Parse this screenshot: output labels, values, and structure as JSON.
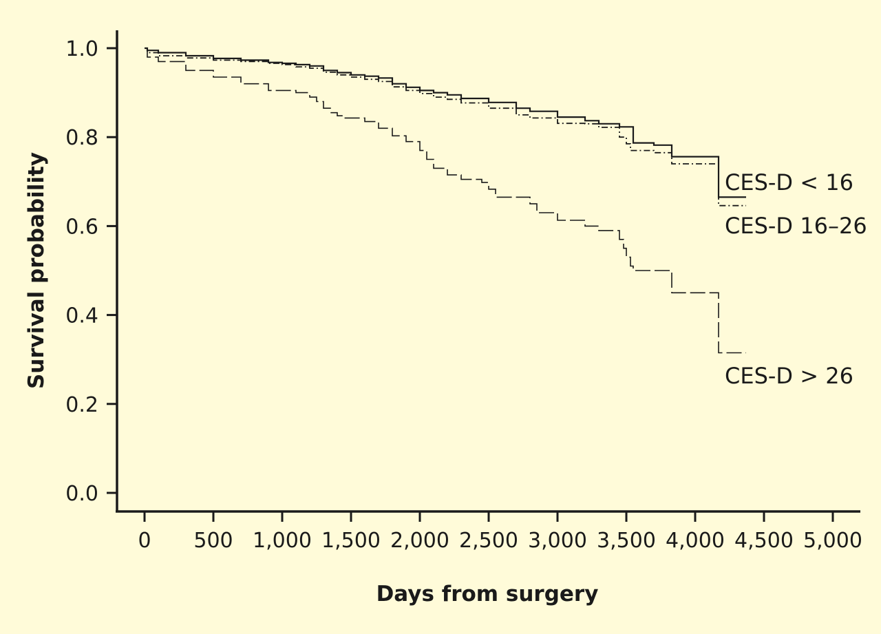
{
  "chart_data": {
    "type": "line",
    "style": "step",
    "xlabel": "Days from surgery",
    "ylabel": "Survival probability",
    "xlim": [
      0,
      5000
    ],
    "ylim": [
      0,
      1
    ],
    "grid": false,
    "background_color": "#fffbd9",
    "line_color": "#1a1a1a",
    "x_ticks": [
      0,
      500,
      1000,
      1500,
      2000,
      2500,
      3000,
      3500,
      4000,
      4500,
      5000
    ],
    "x_tick_labels": [
      "0",
      "500",
      "1,000",
      "1,500",
      "2,000",
      "2,500",
      "3,000",
      "3,500",
      "4,000",
      "4,500",
      "5,000"
    ],
    "y_ticks": [
      0,
      0.2,
      0.4,
      0.6,
      0.8,
      1.0
    ],
    "y_tick_labels": [
      "0.0",
      "0.2",
      "0.4",
      "0.6",
      "0.8",
      "1.0"
    ],
    "series": [
      {
        "name": "CES-D < 16",
        "line_style": "solid",
        "x": [
          0,
          20,
          100,
          300,
          500,
          700,
          900,
          1000,
          1100,
          1200,
          1300,
          1400,
          1500,
          1600,
          1700,
          1800,
          1900,
          2000,
          2100,
          2200,
          2300,
          2500,
          2700,
          2800,
          3000,
          3200,
          3300,
          3450,
          3550,
          3700,
          3830,
          4000,
          4170,
          4370
        ],
        "y": [
          1.0,
          0.995,
          0.99,
          0.983,
          0.977,
          0.973,
          0.968,
          0.966,
          0.963,
          0.96,
          0.95,
          0.945,
          0.94,
          0.937,
          0.933,
          0.92,
          0.912,
          0.905,
          0.9,
          0.895,
          0.887,
          0.878,
          0.865,
          0.858,
          0.845,
          0.837,
          0.83,
          0.823,
          0.787,
          0.782,
          0.756,
          0.756,
          0.665,
          0.665
        ]
      },
      {
        "name": "CES-D 16–26",
        "line_style": "dash-dot",
        "x": [
          0,
          20,
          100,
          300,
          500,
          700,
          900,
          1000,
          1100,
          1200,
          1300,
          1400,
          1500,
          1600,
          1700,
          1800,
          1900,
          2000,
          2100,
          2200,
          2300,
          2500,
          2700,
          2800,
          3000,
          3200,
          3300,
          3450,
          3500,
          3530,
          3700,
          3830,
          4000,
          4170,
          4370
        ],
        "y": [
          1.0,
          0.99,
          0.983,
          0.978,
          0.973,
          0.97,
          0.966,
          0.963,
          0.958,
          0.955,
          0.946,
          0.94,
          0.935,
          0.93,
          0.925,
          0.913,
          0.905,
          0.898,
          0.89,
          0.885,
          0.877,
          0.865,
          0.85,
          0.843,
          0.831,
          0.83,
          0.822,
          0.8,
          0.785,
          0.77,
          0.765,
          0.74,
          0.74,
          0.646,
          0.646
        ]
      },
      {
        "name": "CES-D > 26",
        "line_style": "long-dash",
        "x": [
          0,
          20,
          100,
          300,
          500,
          700,
          900,
          1100,
          1200,
          1250,
          1300,
          1350,
          1400,
          1450,
          1500,
          1600,
          1700,
          1800,
          1900,
          2000,
          2050,
          2100,
          2200,
          2300,
          2450,
          2500,
          2550,
          2800,
          2850,
          3000,
          3100,
          3200,
          3300,
          3450,
          3480,
          3500,
          3530,
          3550,
          3620,
          3830,
          4000,
          4170,
          4370
        ],
        "y": [
          1.0,
          0.98,
          0.97,
          0.95,
          0.935,
          0.92,
          0.905,
          0.9,
          0.89,
          0.88,
          0.865,
          0.855,
          0.848,
          0.843,
          0.843,
          0.835,
          0.82,
          0.803,
          0.79,
          0.77,
          0.75,
          0.73,
          0.715,
          0.705,
          0.698,
          0.683,
          0.665,
          0.65,
          0.63,
          0.613,
          0.613,
          0.6,
          0.59,
          0.57,
          0.55,
          0.53,
          0.51,
          0.5,
          0.5,
          0.45,
          0.45,
          0.315,
          0.315
        ]
      }
    ],
    "legend_labels": [
      "CES-D < 16",
      "CES-D 16–26",
      "CES-D > 26"
    ]
  }
}
